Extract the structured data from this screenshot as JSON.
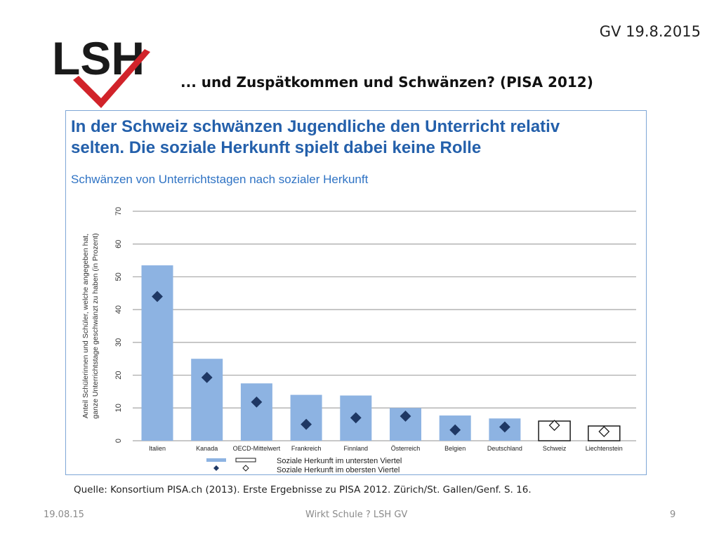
{
  "header": {
    "logo_text": "LSH",
    "date": "GV 19.8.2015",
    "title": "... und Zuspätkommen und Schwänzen? (PISA 2012)"
  },
  "figure": {
    "headline_line1": "In der Schweiz schwänzen Jugendliche den Unterricht relativ",
    "headline_line2": "selten. Die soziale Herkunft spielt dabei keine Rolle",
    "subtitle": "Schwänzen von Unterrichtstagen nach sozialer Herkunft"
  },
  "chart_data": {
    "type": "bar",
    "ylabel_line1": "Anteil Schülerinnen und Schüler, welche angegeben hat,",
    "ylabel_line2": "ganze Unterrichtstage geschwänzt zu haben (in Prozent)",
    "ylim": [
      0,
      70
    ],
    "yticks": [
      "0",
      "10",
      "20",
      "30",
      "40",
      "50",
      "60",
      "70"
    ],
    "categories": [
      "Italien",
      "Kanada",
      "OECD-Mittelwert",
      "Frankreich",
      "Finnland",
      "Österreich",
      "Belgien",
      "Deutschland",
      "Schweiz",
      "Liechtenstein"
    ],
    "series": [
      {
        "name": "Soziale Herkunft im untersten Viertel",
        "values": [
          53.5,
          25,
          17.5,
          14,
          13.8,
          10,
          7.7,
          6.8,
          6,
          4.5
        ]
      },
      {
        "name": "Soziale Herkunft im obersten Viertel",
        "values": [
          44,
          19.3,
          11.8,
          5,
          7,
          7.5,
          3.3,
          4.2,
          4.7,
          2.8
        ]
      }
    ],
    "highlighted": [
      "Schweiz",
      "Liechtenstein"
    ],
    "colors": {
      "bar": "#8db3e2",
      "marker": "#1f3864",
      "grid": "#a6a6a6"
    },
    "grid": true,
    "legend_position": "bottom-left"
  },
  "source": "Quelle: Konsortium PISA.ch (2013). Erste Ergebnisse zu PISA 2012. Zürich/St. Gallen/Genf. S. 16.",
  "footer": {
    "date": "19.08.15",
    "center": "Wirkt Schule ? LSH GV",
    "page": "9"
  }
}
